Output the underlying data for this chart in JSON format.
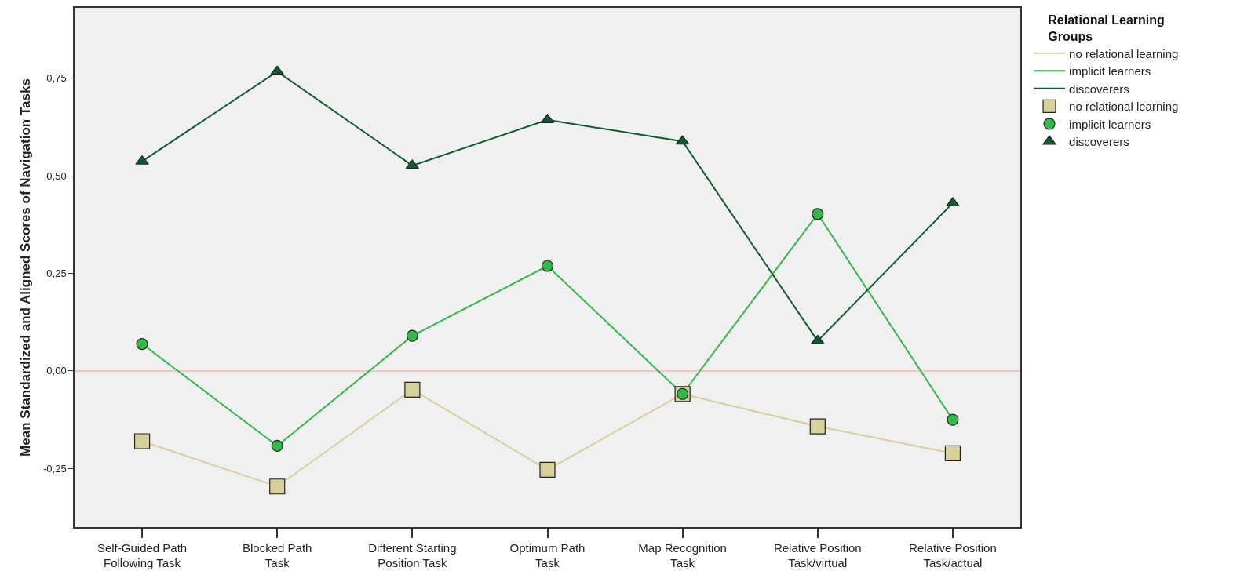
{
  "chart_data": {
    "type": "line",
    "ylabel": "Mean Standardized and Aligned Scores of Navigation Tasks",
    "legend_title": "Relational Learning\nGroups",
    "categories": [
      "Self-Guided Path\nFollowing Task",
      "Blocked Path\nTask",
      "Different Starting\nPosition Task",
      "Optimum Path\nTask",
      "Map Recognition\nTask",
      "Relative Position\nTask/virtual",
      "Relative Position\nTask/actual"
    ],
    "series": [
      {
        "name": "no relational learning",
        "color": "#d6d09a",
        "marker": "square",
        "values": [
          -0.18,
          -0.296,
          -0.048,
          -0.253,
          -0.059,
          -0.142,
          -0.211
        ]
      },
      {
        "name": "implicit learners",
        "color": "#33b84a",
        "marker": "circle",
        "values": [
          0.069,
          -0.192,
          0.09,
          0.269,
          -0.059,
          0.402,
          -0.125
        ]
      },
      {
        "name": "discoverers",
        "color": "#0d5c2e",
        "marker": "triangle",
        "values": [
          0.537,
          0.767,
          0.526,
          0.643,
          0.588,
          0.077,
          0.43
        ]
      }
    ],
    "ylim": [
      -0.4,
      0.93
    ],
    "yticks": [
      {
        "value": -0.25,
        "label": "-0,25"
      },
      {
        "value": 0,
        "label": "0,00"
      },
      {
        "value": 0.25,
        "label": "0,25"
      },
      {
        "value": 0.5,
        "label": "0,50"
      },
      {
        "value": 0.75,
        "label": "0,75"
      }
    ],
    "ref_lines": [
      {
        "axis": "y",
        "value": 0,
        "color": "#f4b8b8"
      }
    ],
    "grid": false,
    "legend": "top right",
    "line_style": "solid"
  }
}
